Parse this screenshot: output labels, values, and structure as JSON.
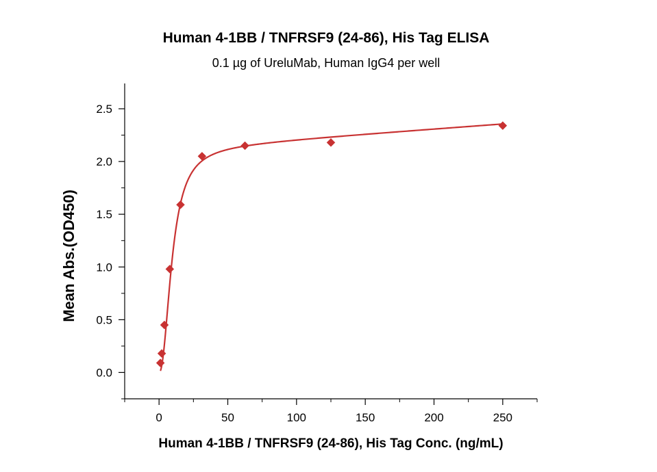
{
  "chart_data": {
    "type": "scatter",
    "title": "Human 4-1BB / TNFRSF9 (24-86), His Tag ELISA",
    "subtitle": "0.1 µg of UreluMab, Human IgG4 per well",
    "xlabel": "Human 4-1BB / TNFRSF9 (24-86), His Tag Conc. (ng/mL)",
    "ylabel": "Mean Abs.(OD450)",
    "xlim": [
      -25,
      275
    ],
    "ylim": [
      -0.25,
      2.74
    ],
    "x_ticks": [
      "0",
      "50",
      "100",
      "150",
      "200",
      "250"
    ],
    "y_ticks": [
      "0.0",
      "0.5",
      "1.0",
      "1.5",
      "2.0",
      "2.5"
    ],
    "grid": false,
    "legend": "none",
    "marker": "diamond",
    "series_color": "#c83232",
    "series": [
      {
        "x": [
          0.98,
          1.95,
          3.9,
          7.8,
          15.6,
          31.25,
          62.5,
          125,
          250
        ],
        "y": [
          0.09,
          0.18,
          0.45,
          0.98,
          1.59,
          2.05,
          2.15,
          2.18,
          2.34
        ]
      }
    ],
    "fit_curve": {
      "type": "4PL",
      "bottom": 0.0,
      "top": 2.12,
      "ec50": 9.5,
      "hill": 2.2,
      "linear_slope": 0.00095
    }
  }
}
